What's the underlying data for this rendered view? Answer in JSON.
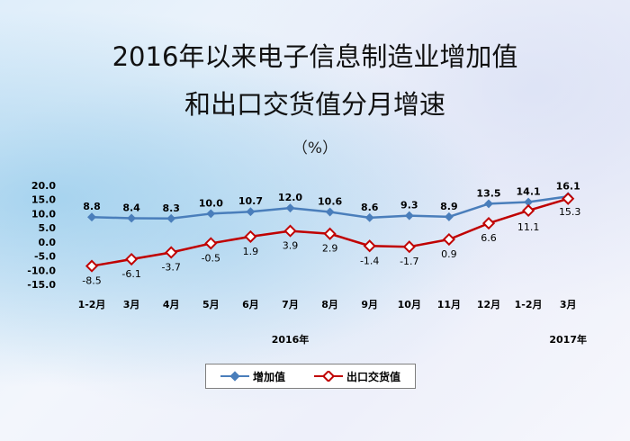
{
  "header": {
    "title_line1": "2016年以来电子信息制造业增加值",
    "title_line2": "和出口交货值分月增速",
    "unit": "（%）"
  },
  "colors": {
    "series1": "#4a7ebb",
    "series2": "#c00000"
  },
  "chart_data": {
    "type": "line",
    "title": "2016年以来电子信息制造业增加值和出口交货值分月增速",
    "unit": "%",
    "categories": [
      "1-2月",
      "3月",
      "4月",
      "5月",
      "6月",
      "7月",
      "8月",
      "9月",
      "10月",
      "11月",
      "12月",
      "1-2月",
      "3月"
    ],
    "year_labels": [
      {
        "label": "2016年",
        "category_index": 5
      },
      {
        "label": "2017年",
        "category_index": 12
      }
    ],
    "series": [
      {
        "name": "增加值",
        "values": [
          8.8,
          8.4,
          8.3,
          10.0,
          10.7,
          12.0,
          10.6,
          8.6,
          9.3,
          8.9,
          13.5,
          14.1,
          16.1
        ],
        "value_labels": [
          "8.8",
          "8.4",
          "8.3",
          "10.0",
          "10.7",
          "12.0",
          "10.6",
          "8.6",
          "9.3",
          "8.9",
          "13.5",
          "14.1",
          "16.1"
        ]
      },
      {
        "name": "出口交货值",
        "values": [
          -8.5,
          -6.1,
          -3.7,
          -0.5,
          1.9,
          3.9,
          2.9,
          -1.4,
          -1.7,
          0.9,
          6.6,
          11.1,
          15.3
        ],
        "value_labels": [
          "-8.5",
          "-6.1",
          "-3.7",
          "-0.5",
          "1.9",
          "3.9",
          "2.9",
          "-1.4",
          "-1.7",
          "0.9",
          "6.6",
          "11.1",
          "15.3"
        ]
      }
    ],
    "yticks": [
      "20.0",
      "15.0",
      "10.0",
      "5.0",
      "0.0",
      "-5.0",
      "-10.0",
      "-15.0"
    ],
    "ylim": [
      -15,
      20
    ],
    "legend": "bottom"
  }
}
